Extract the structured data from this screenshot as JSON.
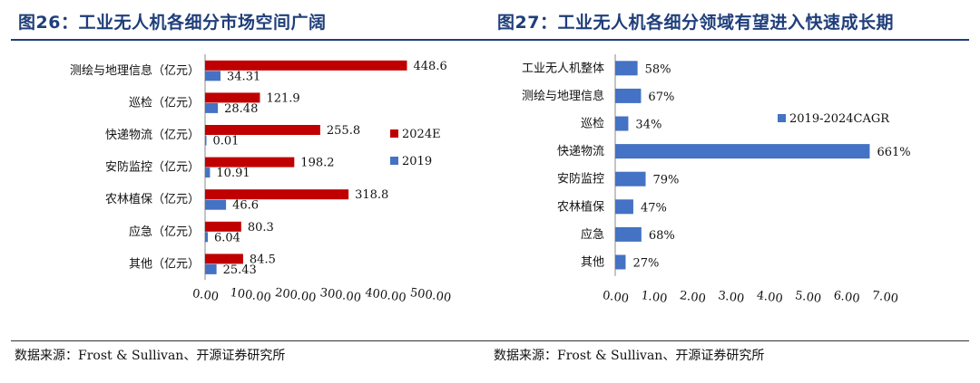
{
  "charts": [
    {
      "title": "图26：工业无人机各细分市场空间广阔",
      "source": "数据来源：Frost & Sullivan、开源证券研究所",
      "chart_data": {
        "type": "bar",
        "orientation": "horizontal",
        "categories": [
          "测绘与地理信息（亿元）",
          "巡检（亿元）",
          "快递物流（亿元）",
          "安防监控（亿元）",
          "农林植保（亿元）",
          "应急（亿元）",
          "其他（亿元）"
        ],
        "series": [
          {
            "name": "2024E",
            "color": "#c00000",
            "values": [
              448.6,
              121.9,
              255.8,
              198.2,
              318.8,
              80.3,
              84.5
            ],
            "labels": [
              "448.6",
              "121.9",
              "255.8",
              "198.2",
              "318.8",
              "80.3",
              "84.5"
            ]
          },
          {
            "name": "2019",
            "color": "#4472c4",
            "values": [
              34.31,
              28.48,
              0.01,
              10.91,
              46.6,
              6.04,
              25.43
            ],
            "labels": [
              "34.31",
              "28.48",
              "0.01",
              "10.91",
              "46.6",
              "6.04",
              "25.43"
            ]
          }
        ],
        "xlim": [
          0,
          500
        ],
        "xticks": [
          0,
          100,
          200,
          300,
          400,
          500
        ],
        "xtick_labels": [
          "0.00",
          "100.00",
          "200.00",
          "300.00",
          "400.00",
          "500.00"
        ],
        "legend": "right",
        "grid": false
      }
    },
    {
      "title": "图27：工业无人机各细分领域有望进入快速成长期",
      "source": "数据来源：Frost & Sullivan、开源证券研究所",
      "chart_data": {
        "type": "bar",
        "orientation": "horizontal",
        "categories": [
          "工业无人机整体",
          "测绘与地理信息",
          "巡检",
          "快递物流",
          "安防监控",
          "农林植保",
          "应急",
          "其他"
        ],
        "series": [
          {
            "name": "2019-2024CAGR",
            "color": "#4472c4",
            "values": [
              0.58,
              0.67,
              0.34,
              6.61,
              0.79,
              0.47,
              0.68,
              0.27
            ],
            "labels": [
              "58%",
              "67%",
              "34%",
              "661%",
              "79%",
              "47%",
              "68%",
              "27%"
            ]
          }
        ],
        "xlim": [
          0,
          7
        ],
        "xticks": [
          0,
          1,
          2,
          3,
          4,
          5,
          6,
          7
        ],
        "xtick_labels": [
          "0.00",
          "1.00",
          "2.00",
          "3.00",
          "4.00",
          "5.00",
          "6.00",
          "7.00"
        ],
        "legend": "top-center",
        "grid": false
      }
    }
  ]
}
